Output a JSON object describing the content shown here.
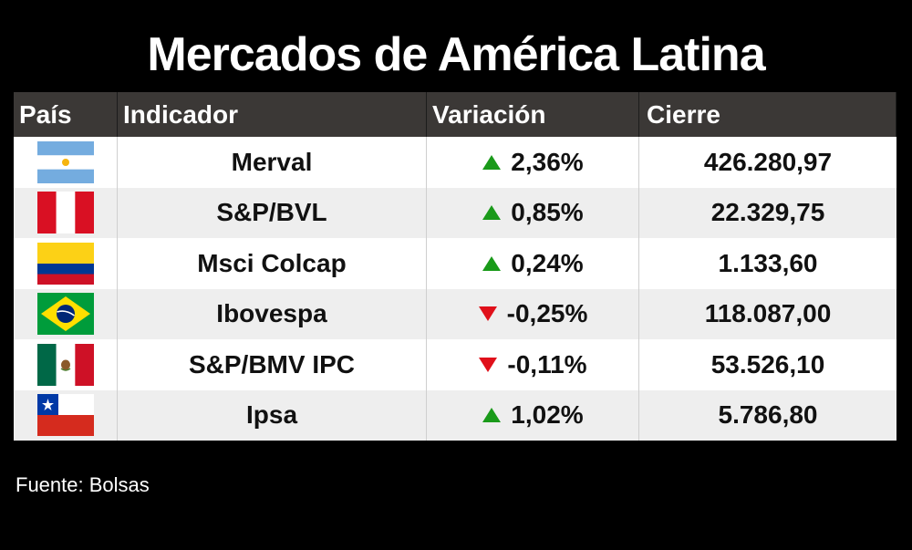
{
  "title": "Mercados de América Latina",
  "colors": {
    "background": "#000000",
    "header_bg": "#3b3836",
    "row_odd": "#ffffff",
    "row_even": "#eeeeee",
    "up": "#1a9a1a",
    "down": "#e0101a"
  },
  "table": {
    "headers": [
      "País",
      "Indicador",
      "Variación",
      "Cierre"
    ],
    "rows": [
      {
        "country_flag": "argentina-flag-icon",
        "indicator": "Merval",
        "direction": "up-icon",
        "variation": "2,36%",
        "close": "426.280,97"
      },
      {
        "country_flag": "peru-flag-icon",
        "indicator": "S&P/BVL",
        "direction": "up-icon",
        "variation": "0,85%",
        "close": "22.329,75"
      },
      {
        "country_flag": "colombia-flag-icon",
        "indicator": "Msci Colcap",
        "direction": "up-icon",
        "variation": "0,24%",
        "close": "1.133,60"
      },
      {
        "country_flag": "brazil-flag-icon",
        "indicator": "Ibovespa",
        "direction": "down-icon",
        "variation": "-0,25%",
        "close": "118.087,00"
      },
      {
        "country_flag": "mexico-flag-icon",
        "indicator": "S&P/BMV IPC",
        "direction": "down-icon",
        "variation": "-0,11%",
        "close": "53.526,10"
      },
      {
        "country_flag": "chile-flag-icon",
        "indicator": "Ipsa",
        "direction": "up-icon",
        "variation": "1,02%",
        "close": "5.786,80"
      }
    ]
  },
  "source": "Fuente: Bolsas"
}
